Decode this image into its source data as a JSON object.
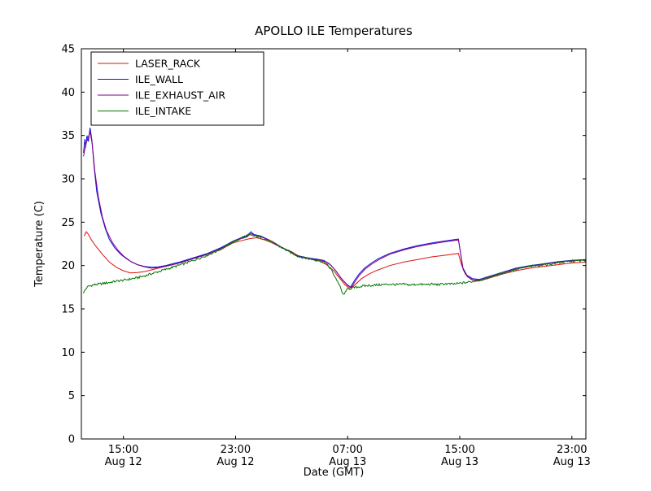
{
  "chart_data": {
    "type": "line",
    "title": "APOLLO ILE Temperatures",
    "xlabel": "Date (GMT)",
    "ylabel": "Temperature (C)",
    "xlim": [
      12,
      48
    ],
    "ylim": [
      0,
      45
    ],
    "x_unit": "hours since Aug 12 00:00 GMT",
    "grid": false,
    "legend_position": "upper-left",
    "yticks": [
      0,
      5,
      10,
      15,
      20,
      25,
      30,
      35,
      40,
      45
    ],
    "xticks": [
      {
        "x": 15,
        "time": "15:00",
        "date": "Aug 12"
      },
      {
        "x": 23,
        "time": "23:00",
        "date": "Aug 12"
      },
      {
        "x": 31,
        "time": "07:00",
        "date": "Aug 13"
      },
      {
        "x": 39,
        "time": "15:00",
        "date": "Aug 13"
      },
      {
        "x": 47,
        "time": "23:00",
        "date": "Aug 13"
      }
    ],
    "series": [
      {
        "name": "LASER_RACK",
        "color": "#dd1111",
        "noise": 0,
        "points": [
          [
            12.2,
            23.4
          ],
          [
            12.35,
            23.9
          ],
          [
            12.5,
            23.6
          ],
          [
            12.7,
            23.0
          ],
          [
            13,
            22.3
          ],
          [
            13.5,
            21.3
          ],
          [
            14,
            20.4
          ],
          [
            14.5,
            19.8
          ],
          [
            15,
            19.4
          ],
          [
            15.5,
            19.15
          ],
          [
            16,
            19.2
          ],
          [
            16.5,
            19.3
          ],
          [
            17,
            19.5
          ],
          [
            18,
            19.9
          ],
          [
            19,
            20.3
          ],
          [
            20,
            20.8
          ],
          [
            21,
            21.3
          ],
          [
            22,
            21.9
          ],
          [
            22.8,
            22.6
          ],
          [
            23.5,
            22.9
          ],
          [
            24,
            23.1
          ],
          [
            24.5,
            23.2
          ],
          [
            25,
            23.0
          ],
          [
            25.5,
            22.7
          ],
          [
            26,
            22.3
          ],
          [
            26.5,
            21.9
          ],
          [
            27,
            21.6
          ],
          [
            27.5,
            21.1
          ],
          [
            28,
            20.9
          ],
          [
            28.5,
            20.7
          ],
          [
            29,
            20.5
          ],
          [
            29.5,
            20.1
          ],
          [
            30,
            19.4
          ],
          [
            30.5,
            18.4
          ],
          [
            30.8,
            17.8
          ],
          [
            31.1,
            17.4
          ],
          [
            31.4,
            17.6
          ],
          [
            32,
            18.5
          ],
          [
            32.5,
            19.0
          ],
          [
            33,
            19.4
          ],
          [
            34,
            20.0
          ],
          [
            35,
            20.4
          ],
          [
            36,
            20.7
          ],
          [
            37,
            21.0
          ],
          [
            38,
            21.2
          ],
          [
            38.9,
            21.4
          ],
          [
            39.1,
            20.2
          ],
          [
            39.4,
            19.0
          ],
          [
            39.8,
            18.4
          ],
          [
            40.3,
            18.2
          ],
          [
            41,
            18.5
          ],
          [
            42,
            19.0
          ],
          [
            43,
            19.4
          ],
          [
            44,
            19.7
          ],
          [
            45,
            19.9
          ],
          [
            46,
            20.1
          ],
          [
            47,
            20.3
          ],
          [
            48,
            20.4
          ]
        ]
      },
      {
        "name": "ILE_WALL",
        "color": "#1111dd",
        "noise": 0,
        "points": [
          [
            12.15,
            33.0
          ],
          [
            12.25,
            34.6
          ],
          [
            12.3,
            33.6
          ],
          [
            12.4,
            35.0
          ],
          [
            12.5,
            34.3
          ],
          [
            12.62,
            35.9
          ],
          [
            12.75,
            34.5
          ],
          [
            12.9,
            31.5
          ],
          [
            13.1,
            28.5
          ],
          [
            13.4,
            26.0
          ],
          [
            13.7,
            24.3
          ],
          [
            14,
            23.0
          ],
          [
            14.4,
            22.0
          ],
          [
            14.8,
            21.3
          ],
          [
            15.2,
            20.8
          ],
          [
            15.6,
            20.4
          ],
          [
            16,
            20.1
          ],
          [
            16.5,
            19.9
          ],
          [
            17,
            19.8
          ],
          [
            17.5,
            19.85
          ],
          [
            18,
            20.0
          ],
          [
            18.5,
            20.2
          ],
          [
            19,
            20.4
          ],
          [
            20,
            20.9
          ],
          [
            21,
            21.4
          ],
          [
            22,
            22.1
          ],
          [
            22.8,
            22.8
          ],
          [
            23.4,
            23.2
          ],
          [
            23.8,
            23.4
          ],
          [
            24.1,
            23.9
          ],
          [
            24.3,
            23.6
          ],
          [
            24.8,
            23.4
          ],
          [
            25.2,
            23.1
          ],
          [
            25.8,
            22.6
          ],
          [
            26.3,
            22.1
          ],
          [
            26.8,
            21.7
          ],
          [
            27.3,
            21.2
          ],
          [
            27.8,
            21.0
          ],
          [
            28.3,
            20.85
          ],
          [
            28.8,
            20.75
          ],
          [
            29.3,
            20.6
          ],
          [
            29.7,
            20.2
          ],
          [
            30.1,
            19.5
          ],
          [
            30.5,
            18.6
          ],
          [
            30.9,
            17.9
          ],
          [
            31.2,
            17.5
          ],
          [
            31.5,
            18.3
          ],
          [
            31.8,
            19.0
          ],
          [
            32.2,
            19.7
          ],
          [
            32.7,
            20.3
          ],
          [
            33.2,
            20.8
          ],
          [
            34,
            21.4
          ],
          [
            35,
            21.9
          ],
          [
            36,
            22.3
          ],
          [
            37,
            22.6
          ],
          [
            38,
            22.85
          ],
          [
            38.9,
            23.05
          ],
          [
            39.05,
            21.5
          ],
          [
            39.2,
            19.8
          ],
          [
            39.5,
            18.9
          ],
          [
            39.9,
            18.5
          ],
          [
            40.4,
            18.4
          ],
          [
            41,
            18.7
          ],
          [
            42,
            19.2
          ],
          [
            43,
            19.7
          ],
          [
            44,
            20.0
          ],
          [
            45,
            20.2
          ],
          [
            46,
            20.45
          ],
          [
            47,
            20.6
          ],
          [
            48,
            20.7
          ]
        ]
      },
      {
        "name": "ILE_EXHAUST_AIR",
        "color": "#800080",
        "noise": 0,
        "points": [
          [
            12.15,
            32.6
          ],
          [
            12.3,
            33.9
          ],
          [
            12.45,
            34.6
          ],
          [
            12.62,
            35.4
          ],
          [
            12.78,
            34.0
          ],
          [
            12.95,
            31.0
          ],
          [
            13.2,
            28.0
          ],
          [
            13.5,
            25.6
          ],
          [
            13.8,
            24.0
          ],
          [
            14.2,
            22.7
          ],
          [
            14.6,
            21.8
          ],
          [
            15,
            21.1
          ],
          [
            15.5,
            20.5
          ],
          [
            16,
            20.1
          ],
          [
            16.5,
            19.85
          ],
          [
            17,
            19.7
          ],
          [
            17.5,
            19.75
          ],
          [
            18,
            19.9
          ],
          [
            18.5,
            20.1
          ],
          [
            19,
            20.3
          ],
          [
            20,
            20.8
          ],
          [
            21,
            21.3
          ],
          [
            22,
            22.0
          ],
          [
            22.8,
            22.7
          ],
          [
            23.4,
            23.1
          ],
          [
            23.8,
            23.3
          ],
          [
            24.1,
            23.7
          ],
          [
            24.4,
            23.45
          ],
          [
            24.9,
            23.25
          ],
          [
            25.3,
            23.0
          ],
          [
            25.9,
            22.45
          ],
          [
            26.4,
            22.0
          ],
          [
            26.9,
            21.55
          ],
          [
            27.4,
            21.1
          ],
          [
            27.9,
            20.9
          ],
          [
            28.4,
            20.75
          ],
          [
            28.9,
            20.65
          ],
          [
            29.4,
            20.45
          ],
          [
            29.8,
            20.05
          ],
          [
            30.2,
            19.3
          ],
          [
            30.6,
            18.4
          ],
          [
            31,
            17.7
          ],
          [
            31.25,
            17.45
          ],
          [
            31.55,
            18.2
          ],
          [
            31.85,
            18.9
          ],
          [
            32.25,
            19.6
          ],
          [
            32.75,
            20.2
          ],
          [
            33.25,
            20.7
          ],
          [
            34,
            21.3
          ],
          [
            35,
            21.8
          ],
          [
            36,
            22.2
          ],
          [
            37,
            22.5
          ],
          [
            38,
            22.75
          ],
          [
            38.9,
            22.95
          ],
          [
            39.08,
            21.2
          ],
          [
            39.25,
            19.5
          ],
          [
            39.55,
            18.7
          ],
          [
            39.95,
            18.35
          ],
          [
            40.45,
            18.3
          ],
          [
            41,
            18.6
          ],
          [
            42,
            19.1
          ],
          [
            43,
            19.6
          ],
          [
            44,
            19.9
          ],
          [
            45,
            20.15
          ],
          [
            46,
            20.4
          ],
          [
            47,
            20.55
          ],
          [
            48,
            20.65
          ]
        ]
      },
      {
        "name": "ILE_INTAKE",
        "color": "#007700",
        "noise": 0.13,
        "points": [
          [
            12.15,
            16.8
          ],
          [
            12.3,
            17.3
          ],
          [
            12.5,
            17.6
          ],
          [
            12.8,
            17.75
          ],
          [
            13.2,
            17.85
          ],
          [
            13.6,
            17.95
          ],
          [
            14,
            18.05
          ],
          [
            14.5,
            18.2
          ],
          [
            15,
            18.3
          ],
          [
            15.5,
            18.45
          ],
          [
            16,
            18.6
          ],
          [
            16.5,
            18.8
          ],
          [
            17,
            19.05
          ],
          [
            17.5,
            19.3
          ],
          [
            18,
            19.55
          ],
          [
            18.5,
            19.8
          ],
          [
            19,
            20.05
          ],
          [
            19.5,
            20.3
          ],
          [
            20,
            20.6
          ],
          [
            20.5,
            20.9
          ],
          [
            21,
            21.2
          ],
          [
            21.5,
            21.55
          ],
          [
            22,
            21.95
          ],
          [
            22.4,
            22.3
          ],
          [
            22.8,
            22.7
          ],
          [
            23.2,
            23.0
          ],
          [
            23.6,
            23.35
          ],
          [
            23.9,
            23.5
          ],
          [
            24.2,
            23.45
          ],
          [
            24.6,
            23.3
          ],
          [
            25,
            23.1
          ],
          [
            25.5,
            22.8
          ],
          [
            26,
            22.3
          ],
          [
            26.5,
            21.9
          ],
          [
            27,
            21.45
          ],
          [
            27.5,
            21.05
          ],
          [
            28,
            20.85
          ],
          [
            28.5,
            20.7
          ],
          [
            29,
            20.55
          ],
          [
            29.4,
            20.3
          ],
          [
            29.8,
            19.6
          ],
          [
            30.1,
            18.7
          ],
          [
            30.4,
            17.8
          ],
          [
            30.6,
            16.9
          ],
          [
            30.75,
            16.6
          ],
          [
            30.9,
            17.2
          ],
          [
            31.2,
            17.35
          ],
          [
            31.6,
            17.5
          ],
          [
            32,
            17.6
          ],
          [
            32.5,
            17.7
          ],
          [
            33,
            17.75
          ],
          [
            33.5,
            17.8
          ],
          [
            34,
            17.85
          ],
          [
            34.5,
            17.8
          ],
          [
            35,
            17.85
          ],
          [
            35.5,
            17.75
          ],
          [
            36,
            17.85
          ],
          [
            36.5,
            17.8
          ],
          [
            37,
            17.85
          ],
          [
            37.5,
            17.8
          ],
          [
            38,
            17.9
          ],
          [
            38.5,
            17.85
          ],
          [
            39,
            17.95
          ],
          [
            39.5,
            18.05
          ],
          [
            40,
            18.2
          ],
          [
            40.5,
            18.35
          ],
          [
            41,
            18.6
          ],
          [
            41.5,
            18.85
          ],
          [
            42,
            19.1
          ],
          [
            42.5,
            19.35
          ],
          [
            43,
            19.55
          ],
          [
            43.5,
            19.75
          ],
          [
            44,
            19.9
          ],
          [
            44.5,
            20.0
          ],
          [
            45,
            20.1
          ],
          [
            45.5,
            20.2
          ],
          [
            46,
            20.3
          ],
          [
            46.5,
            20.4
          ],
          [
            47,
            20.5
          ],
          [
            48,
            20.6
          ]
        ]
      }
    ]
  }
}
